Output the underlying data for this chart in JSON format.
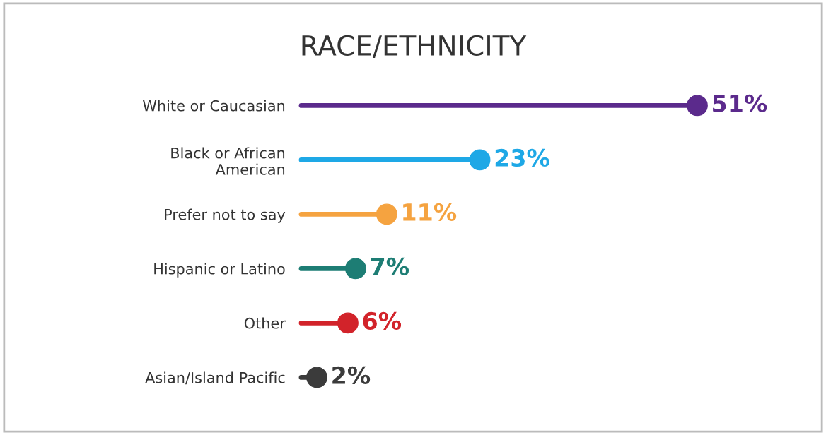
{
  "chart_data": {
    "type": "lollipop",
    "title": "RACE/ETHNICITY",
    "orientation": "horizontal",
    "marker": "circle",
    "categories": [
      "White or Caucasian",
      "Black or African\nAmerican",
      "Prefer not to say",
      "Hispanic or Latino",
      "Other",
      "Asian/Island Pacific"
    ],
    "values": [
      51,
      23,
      11,
      7,
      6,
      2
    ],
    "value_labels": [
      "51%",
      "23%",
      "11%",
      "7%",
      "6%",
      "2%"
    ],
    "colors": [
      "#5b2a8c",
      "#1ea8e6",
      "#f5a340",
      "#1d7d74",
      "#d2232a",
      "#3b3b3b"
    ],
    "grid": false,
    "legend": false
  }
}
